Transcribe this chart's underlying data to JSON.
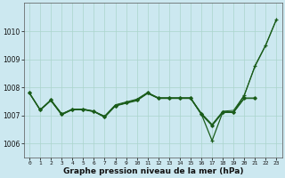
{
  "background_color": "#cce8f0",
  "grid_color": "#aad4cc",
  "line_color": "#1a5c1a",
  "x_labels": [
    "0",
    "1",
    "2",
    "3",
    "4",
    "5",
    "6",
    "7",
    "8",
    "9",
    "10",
    "11",
    "12",
    "13",
    "14",
    "15",
    "16",
    "17",
    "18",
    "19",
    "20",
    "21",
    "22",
    "23"
  ],
  "xlabel": "Graphe pression niveau de la mer (hPa)",
  "xlabel_fontsize": 6.5,
  "ylim": [
    1005.5,
    1011.0
  ],
  "yticks": [
    1006,
    1007,
    1008,
    1009,
    1010
  ],
  "series": [
    {
      "x": [
        0,
        1,
        2,
        3,
        4,
        5,
        6,
        7,
        8,
        9,
        10,
        11,
        12,
        13,
        14,
        15,
        16,
        17,
        18,
        19,
        20,
        21
      ],
      "y": [
        1007.8,
        1007.2,
        1007.55,
        1007.05,
        1007.22,
        1007.22,
        1007.15,
        1006.95,
        1007.35,
        1007.45,
        1007.55,
        1007.8,
        1007.62,
        1007.62,
        1007.62,
        1007.62,
        1007.05,
        1006.65,
        1007.12,
        1007.12,
        1007.62,
        1007.62
      ],
      "marker": "D",
      "markersize": 1.8,
      "linewidth": 0.9,
      "linestyle": "-"
    },
    {
      "x": [
        0,
        1,
        2,
        3,
        4,
        5,
        6,
        7,
        8,
        9,
        10,
        11,
        12,
        13,
        14,
        15,
        16,
        17,
        18,
        19,
        20,
        21,
        22,
        23
      ],
      "y": [
        1007.8,
        1007.2,
        1007.55,
        1007.05,
        1007.22,
        1007.22,
        1007.15,
        1006.95,
        1007.35,
        1007.45,
        1007.55,
        1007.8,
        1007.62,
        1007.62,
        1007.62,
        1007.62,
        1007.05,
        1006.1,
        1007.12,
        1007.12,
        1007.72,
        1008.75,
        1009.5,
        1010.42
      ],
      "marker": "+",
      "markersize": 3.5,
      "linewidth": 0.9,
      "linestyle": "-"
    },
    {
      "x": [
        0,
        1,
        2,
        3,
        4,
        5,
        6,
        7,
        8,
        9,
        10,
        11,
        12,
        13,
        14,
        15,
        16,
        17,
        18,
        19,
        20,
        21
      ],
      "y": [
        1007.78,
        1007.18,
        1007.52,
        1007.02,
        1007.2,
        1007.2,
        1007.13,
        1006.93,
        1007.33,
        1007.43,
        1007.52,
        1007.78,
        1007.6,
        1007.6,
        1007.6,
        1007.6,
        1007.03,
        1006.63,
        1007.1,
        1007.1,
        1007.6,
        1007.6
      ],
      "marker": null,
      "markersize": 0,
      "linewidth": 0.7,
      "linestyle": "-"
    },
    {
      "x": [
        2,
        3,
        4,
        5,
        6,
        7,
        8,
        9,
        10,
        11,
        12,
        13,
        14,
        15,
        16,
        17,
        18,
        19,
        20,
        21,
        22,
        23
      ],
      "y": [
        1007.52,
        1007.02,
        1007.22,
        1007.22,
        1007.13,
        1006.98,
        1007.38,
        1007.48,
        1007.58,
        1007.82,
        1007.62,
        1007.62,
        1007.62,
        1007.62,
        1007.08,
        1006.68,
        1007.15,
        1007.18,
        1007.72,
        1008.78,
        1009.52,
        1010.44
      ],
      "marker": null,
      "markersize": 0,
      "linewidth": 0.7,
      "linestyle": "-"
    }
  ]
}
